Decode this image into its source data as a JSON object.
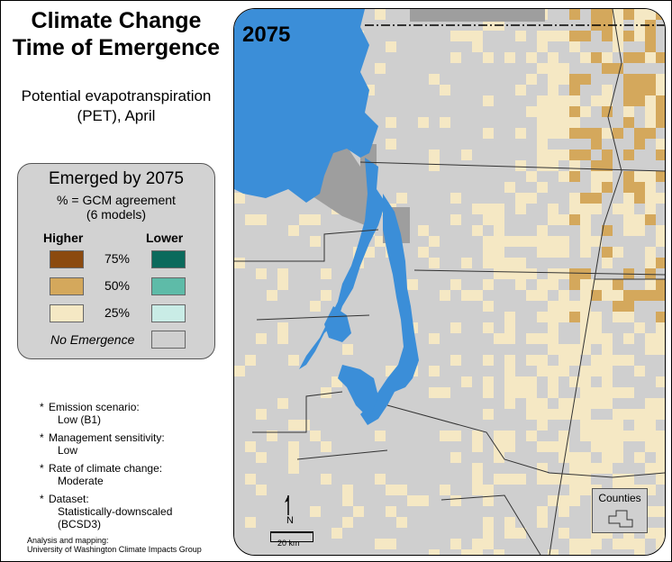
{
  "title": {
    "line1": "Climate Change",
    "line2": "Time of Emergence"
  },
  "subtitle": {
    "line1": "Potential evapotranspiration",
    "line2": "(PET), April"
  },
  "map": {
    "year": "2075"
  },
  "legend": {
    "title": "Emerged by 2075",
    "sub1": "% = GCM agreement",
    "sub2": "(6 models)",
    "higher": "Higher",
    "lower": "Lower",
    "rows": [
      {
        "pct": "75%",
        "higher_color": "#8b4a0f",
        "lower_color": "#0b6a5c"
      },
      {
        "pct": "50%",
        "higher_color": "#d4a85c",
        "lower_color": "#5ebba8"
      },
      {
        "pct": "25%",
        "higher_color": "#f5e8c4",
        "lower_color": "#c9ece6"
      }
    ],
    "no_emergence": "No Emergence",
    "no_emergence_color": "#cfcfcf"
  },
  "notes": [
    {
      "label": "Emission scenario:",
      "value": "Low (B1)"
    },
    {
      "label": "Management sensitivity:",
      "value": "Low"
    },
    {
      "label": "Rate of climate change:",
      "value": "Moderate"
    },
    {
      "label": "Dataset:",
      "value": "Statistically-downscaled",
      "value2": "(BCSD3)"
    }
  ],
  "credit": {
    "line1": "Analysis and mapping:",
    "line2": "University of Washington Climate Impacts Group"
  },
  "counties_label": "Counties",
  "north_label": "N",
  "scale_label": "20 km",
  "colors": {
    "water": "#3b8ed8",
    "land": "#cfcfcf",
    "emerged_25": "#f5e8c4",
    "emerged_50": "#d4a85c",
    "dark_gray": "#9e9e9e"
  }
}
